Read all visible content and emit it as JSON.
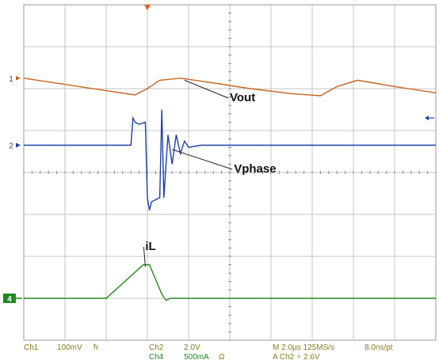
{
  "chart_data": {
    "type": "line",
    "title": "",
    "xlabel": "",
    "ylabel": "",
    "grid": true,
    "grid_divisions": {
      "x": 10,
      "y": 8
    },
    "xlim": [
      0,
      10
    ],
    "ylim": [
      0,
      8
    ],
    "series": [
      {
        "name": "Vout",
        "channel": "1",
        "color": "#c8641e",
        "x": [
          0,
          1.0,
          2.0,
          2.7,
          3.0,
          3.3,
          3.8,
          4.5,
          5.5,
          6.5,
          7.2,
          7.6,
          8.1,
          8.4,
          9.0,
          10
        ],
        "y": [
          6.25,
          6.1,
          5.95,
          5.85,
          6.0,
          6.2,
          6.25,
          6.15,
          6.0,
          5.88,
          5.83,
          6.05,
          6.2,
          6.15,
          6.05,
          5.9
        ]
      },
      {
        "name": "Vphase",
        "channel": "2",
        "color": "#1f3fa8",
        "x": [
          0,
          2.6,
          2.65,
          2.7,
          2.8,
          2.95,
          3.0,
          3.05,
          3.1,
          3.2,
          3.3,
          3.35,
          3.4,
          3.5,
          3.6,
          3.7,
          3.8,
          3.9,
          4.0,
          4.3,
          10
        ],
        "y": [
          4.65,
          4.65,
          5.3,
          5.2,
          5.15,
          5.2,
          3.4,
          3.1,
          3.3,
          3.35,
          3.4,
          5.5,
          3.4,
          4.9,
          4.2,
          4.9,
          4.45,
          4.75,
          4.6,
          4.65,
          4.65
        ]
      },
      {
        "name": "iL",
        "channel": "4",
        "color": "#1f8a1f",
        "x": [
          0,
          2.0,
          2.9,
          3.05,
          3.35,
          3.45,
          3.55,
          10
        ],
        "y": [
          1.0,
          1.0,
          1.8,
          1.8,
          1.1,
          0.95,
          1.0,
          1.0
        ]
      }
    ],
    "annotations": [
      "Vout",
      "Vphase",
      "iL"
    ],
    "markers": [
      "1",
      "2",
      "4"
    ]
  },
  "status_bar": {
    "ch1": "Ch1",
    "ch1_scale": "100mV",
    "ch1_coupling": "ħ",
    "ch2": "Ch2",
    "ch2_scale": "2.0V",
    "ch4": "Ch4",
    "ch4_scale": "500mA",
    "ch4_unit": "Ω",
    "timebase": "M 2.0µs 125MS/s",
    "resolution": "8.0ns/pt",
    "trigger": "A  Ch2  ∘  2.6V"
  }
}
